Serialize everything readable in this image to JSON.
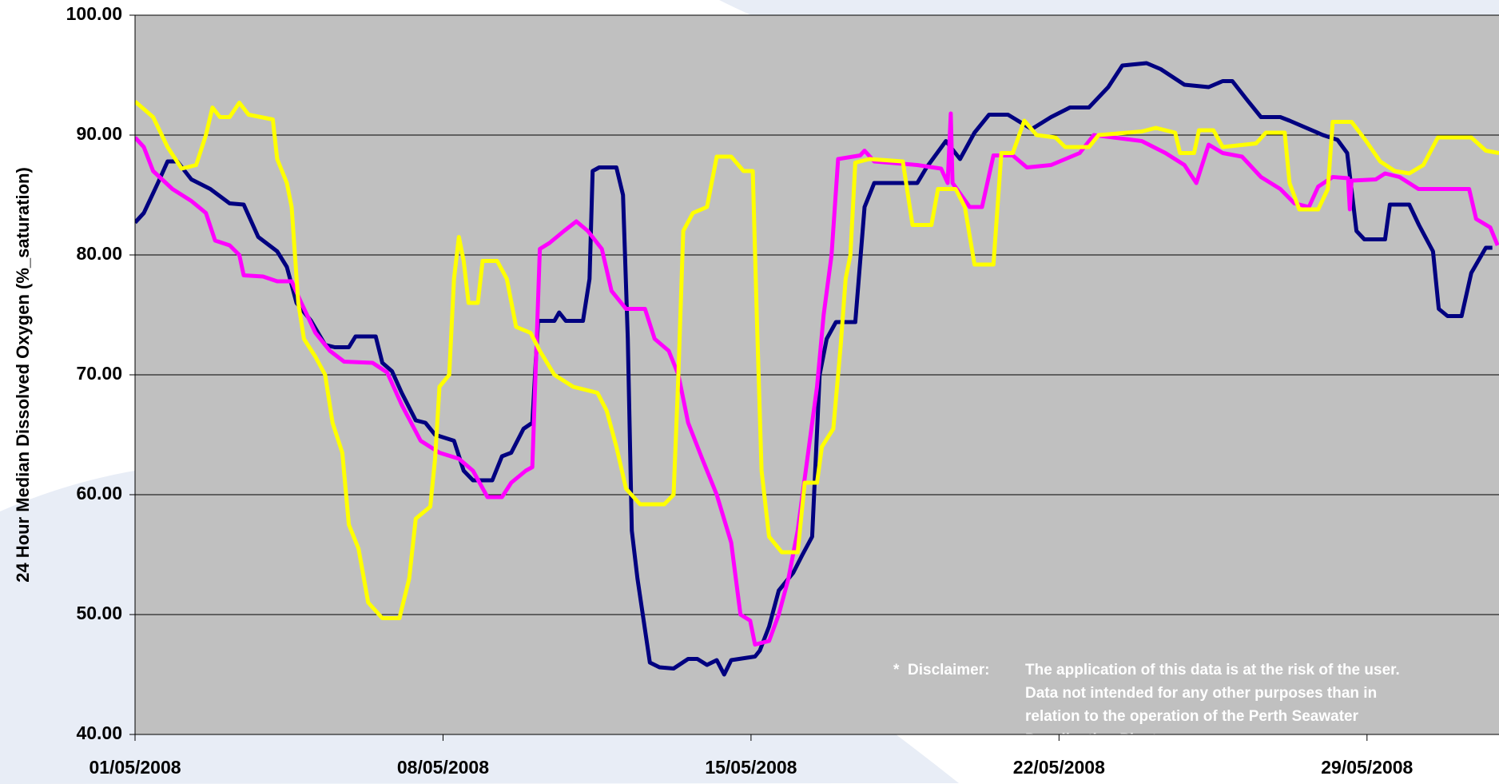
{
  "chart_data": {
    "type": "line",
    "y_label": "24 Hour Median Dissolved Oxygen (%_saturation)",
    "annotation": {
      "marker": "*",
      "heading": "Disclaimer:",
      "lines": [
        "The application of this data is at the risk of the user.",
        "Data not intended for any other purposes than in",
        "relation to the operation of the Perth Seawater",
        "Desalination Plant."
      ]
    },
    "xlim": [
      1,
      32
    ],
    "xticks": [
      {
        "value": 1,
        "label": "01/05/2008"
      },
      {
        "value": 8,
        "label": "08/05/2008"
      },
      {
        "value": 15,
        "label": "15/05/2008"
      },
      {
        "value": 22,
        "label": "22/05/2008"
      },
      {
        "value": 29,
        "label": "29/05/2008"
      }
    ],
    "ylim": [
      40,
      100
    ],
    "yticks": [
      {
        "value": 40,
        "label": "40.00"
      },
      {
        "value": 50,
        "label": "50.00"
      },
      {
        "value": 60,
        "label": "60.00"
      },
      {
        "value": 70,
        "label": "70.00"
      },
      {
        "value": 80,
        "label": "80.00"
      },
      {
        "value": 90,
        "label": "90.00"
      },
      {
        "value": 100,
        "label": "100.00"
      }
    ],
    "grid": true,
    "series": [
      {
        "color": "#000080",
        "x": [
          1.0,
          1.2,
          1.52,
          1.74,
          1.96,
          2.28,
          2.71,
          3.15,
          3.47,
          3.8,
          4.23,
          4.45,
          4.67,
          5.0,
          5.32,
          5.54,
          5.86,
          6.01,
          6.47,
          6.62,
          6.84,
          7.06,
          7.38,
          7.6,
          7.82,
          8.25,
          8.47,
          8.68,
          9.12,
          9.34,
          9.55,
          9.83,
          10.03,
          10.16,
          10.53,
          10.64,
          10.79,
          11.18,
          11.33,
          11.4,
          11.55,
          11.94,
          12.09,
          12.2,
          12.29,
          12.42,
          12.7,
          12.92,
          13.24,
          13.57,
          13.78,
          14.0,
          14.22,
          14.39,
          14.55,
          15.09,
          15.2,
          15.41,
          15.63,
          15.96,
          16.17,
          16.39,
          16.56,
          16.72,
          16.93,
          17.37,
          17.58,
          17.8,
          18.78,
          18.99,
          19.43,
          19.75,
          20.08,
          20.41,
          20.84,
          21.38,
          21.82,
          22.25,
          22.68,
          23.12,
          23.44,
          23.99,
          24.31,
          24.85,
          25.4,
          25.72,
          25.94,
          26.26,
          26.59,
          27.03,
          27.24,
          28.0,
          28.33,
          28.55,
          28.76,
          28.94,
          29.41,
          29.52,
          29.96,
          30.18,
          30.5,
          30.63,
          30.83,
          31.15,
          31.37,
          31.7,
          31.85
        ],
        "values": [
          82.7,
          83.5,
          86,
          87.8,
          87.8,
          86.3,
          85.5,
          84.3,
          84.2,
          81.5,
          80.3,
          79,
          76,
          74.5,
          72.5,
          72.3,
          72.3,
          73.2,
          73.2,
          71,
          70.3,
          68.5,
          66.2,
          66,
          65,
          64.5,
          62,
          61.2,
          61.2,
          63.2,
          63.5,
          65.5,
          66,
          74.5,
          74.5,
          75.2,
          74.5,
          74.5,
          78,
          87,
          87.3,
          87.3,
          85,
          73,
          57,
          53,
          46,
          45.6,
          45.5,
          46.3,
          46.3,
          45.8,
          46.2,
          45,
          46.2,
          46.5,
          47,
          49,
          52,
          53.5,
          55,
          56.5,
          70,
          73,
          74.4,
          74.4,
          84,
          86,
          86,
          87.3,
          89.5,
          88,
          90.2,
          91.7,
          91.7,
          90.5,
          91.5,
          92.3,
          92.3,
          94,
          95.8,
          96,
          95.5,
          94.2,
          94,
          94.5,
          94.5,
          93,
          91.5,
          91.5,
          91.2,
          90,
          89.6,
          88.5,
          82,
          81.3,
          81.3,
          84.2,
          84.2,
          82.5,
          80.3,
          75.5,
          74.9,
          74.9,
          78.5,
          80.6,
          80.6
        ]
      },
      {
        "color": "#ff00ff",
        "x": [
          1.0,
          1.2,
          1.41,
          1.85,
          2.28,
          2.61,
          2.82,
          3.15,
          3.37,
          3.47,
          3.91,
          4.23,
          4.56,
          4.78,
          5.1,
          5.43,
          5.75,
          6.4,
          6.73,
          7.06,
          7.49,
          7.92,
          8.36,
          8.68,
          9.01,
          9.34,
          9.55,
          9.88,
          10.03,
          10.2,
          10.42,
          10.75,
          11.03,
          11.29,
          11.61,
          11.83,
          12.16,
          12.59,
          12.81,
          13.13,
          13.35,
          13.57,
          13.89,
          14.22,
          14.55,
          14.76,
          14.98,
          15.09,
          15.41,
          15.63,
          15.85,
          16.06,
          16.28,
          16.5,
          16.65,
          16.83,
          16.98,
          17.48,
          17.58,
          17.8,
          18.78,
          19.32,
          19.47,
          19.54,
          19.58,
          19.97,
          20.25,
          20.51,
          20.95,
          21.27,
          21.82,
          22.47,
          22.79,
          23.88,
          24.42,
          24.85,
          25.12,
          25.4,
          25.72,
          26.16,
          26.59,
          27.03,
          27.35,
          27.68,
          27.89,
          28.22,
          28.57,
          28.61,
          28.65,
          29.2,
          29.41,
          29.74,
          30.17,
          31.32,
          31.48,
          31.8,
          31.97
        ],
        "values": [
          89.8,
          89,
          87,
          85.5,
          84.5,
          83.5,
          81.2,
          80.8,
          80,
          78.3,
          78.2,
          77.8,
          77.8,
          76,
          73.5,
          72,
          71.1,
          71,
          70.2,
          67.5,
          64.5,
          63.5,
          63,
          62,
          59.8,
          59.8,
          61,
          62,
          62.3,
          80.5,
          81,
          82,
          82.8,
          82,
          80.5,
          77,
          75.5,
          75.5,
          73,
          72,
          70,
          66,
          63,
          60,
          56,
          50,
          49.5,
          47.5,
          47.8,
          50,
          53,
          57,
          63,
          69,
          75,
          80,
          88,
          88.3,
          88.7,
          87.8,
          87.5,
          87.2,
          86,
          91.8,
          86,
          84,
          84,
          88.3,
          88.3,
          87.3,
          87.5,
          88.5,
          90,
          89.5,
          88.5,
          87.5,
          86,
          89.2,
          88.5,
          88.2,
          86.5,
          85.5,
          84.3,
          84,
          85.7,
          86.5,
          86.4,
          83.8,
          86.2,
          86.3,
          86.8,
          86.5,
          85.5,
          85.5,
          83,
          82.3,
          80.8
        ]
      },
      {
        "color": "#ffff00",
        "x": [
          1.0,
          1.41,
          1.74,
          2.06,
          2.39,
          2.61,
          2.76,
          2.93,
          3.15,
          3.37,
          3.58,
          4.13,
          4.23,
          4.45,
          4.56,
          4.71,
          4.84,
          5.1,
          5.32,
          5.49,
          5.71,
          5.86,
          6.08,
          6.3,
          6.62,
          7.01,
          7.23,
          7.38,
          7.71,
          7.82,
          7.92,
          8.14,
          8.25,
          8.36,
          8.47,
          8.58,
          8.79,
          8.9,
          9.23,
          9.45,
          9.66,
          9.99,
          10.2,
          10.53,
          10.96,
          11.51,
          11.72,
          11.94,
          12.16,
          12.48,
          13.03,
          13.24,
          13.35,
          13.46,
          13.68,
          14.0,
          14.22,
          14.55,
          14.83,
          15.04,
          15.13,
          15.24,
          15.41,
          15.7,
          16.06,
          16.22,
          16.5,
          16.61,
          16.87,
          17.04,
          17.15,
          17.26,
          17.37,
          17.69,
          18.45,
          18.67,
          19.1,
          19.25,
          19.65,
          19.86,
          20.08,
          20.51,
          20.69,
          20.95,
          21.21,
          21.49,
          21.92,
          22.14,
          22.68,
          22.9,
          23.88,
          24.2,
          24.64,
          24.75,
          25.07,
          25.18,
          25.51,
          25.72,
          26.48,
          26.7,
          27.13,
          27.24,
          27.46,
          27.89,
          28.11,
          28.22,
          28.65,
          28.98,
          29.3,
          29.63,
          29.96,
          30.28,
          30.61,
          31.37,
          31.7,
          32.0
        ],
        "values": [
          92.8,
          91.5,
          89,
          87.2,
          87.5,
          90,
          92.3,
          91.5,
          91.5,
          92.7,
          91.7,
          91.3,
          88,
          86,
          84,
          76,
          73,
          71.5,
          70,
          66,
          63.5,
          57.5,
          55.5,
          51,
          49.7,
          49.7,
          53,
          58,
          59,
          63,
          69,
          70,
          78,
          81.5,
          79.5,
          76,
          76,
          79.5,
          79.5,
          78,
          74,
          73.5,
          72,
          70,
          69,
          68.5,
          67,
          64,
          60.5,
          59.2,
          59.2,
          60,
          70,
          82,
          83.5,
          84,
          88.2,
          88.2,
          87,
          87,
          75,
          62,
          56.5,
          55.2,
          55.2,
          61,
          61,
          64,
          65.5,
          72.5,
          78,
          80,
          87.7,
          88,
          87.8,
          82.5,
          82.5,
          85.5,
          85.5,
          84,
          79.2,
          79.2,
          88.5,
          88.5,
          91.2,
          90,
          89.8,
          89,
          89,
          90,
          90.3,
          90.6,
          90.2,
          88.5,
          88.5,
          90.4,
          90.4,
          89,
          89.3,
          90.2,
          90.2,
          86,
          83.8,
          83.8,
          85.5,
          91.1,
          91.1,
          89.5,
          87.8,
          87,
          86.8,
          87.5,
          89.8,
          89.8,
          88.7,
          88.5
        ]
      }
    ]
  }
}
